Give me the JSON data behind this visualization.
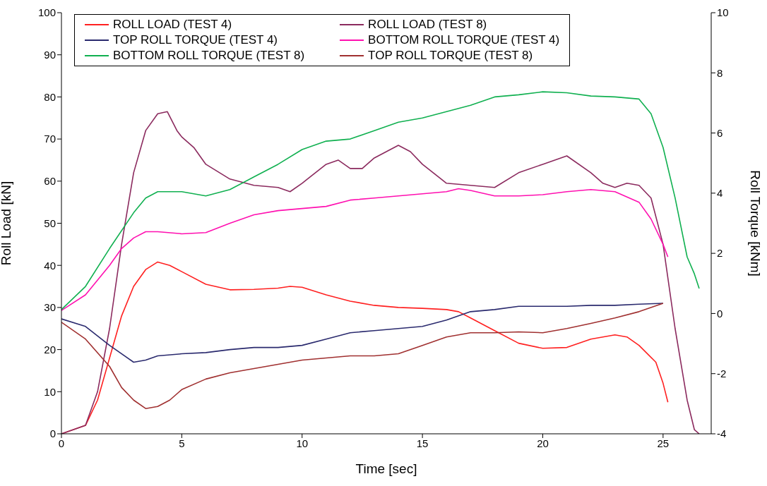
{
  "chart_data": {
    "type": "line",
    "xlabel": "Time [sec]",
    "ylabel": "Roll Load [kN]",
    "y2label": "Roll Torque [kNm]",
    "xlim": [
      0,
      27
    ],
    "xticks": [
      0,
      5,
      10,
      15,
      20,
      25
    ],
    "ylim": [
      0,
      100
    ],
    "yticks": [
      0,
      10,
      20,
      30,
      40,
      50,
      60,
      70,
      80,
      90,
      100
    ],
    "y2lim": [
      -4,
      10
    ],
    "y2ticks": [
      -4,
      -2,
      0,
      2,
      4,
      6,
      8,
      10
    ],
    "grid": false,
    "legend": "top left",
    "marker": "none",
    "line_style": "solid",
    "series": [
      {
        "name": "ROLL LOAD (TEST 4)",
        "color": "#ff2020",
        "x": [
          0,
          1,
          1.5,
          2,
          2.5,
          3,
          3.5,
          4,
          4.5,
          5,
          6,
          7,
          8,
          9,
          9.5,
          10,
          11,
          12,
          13,
          14,
          15,
          16,
          16.5,
          17,
          18,
          19,
          20,
          21,
          22,
          23,
          23.5,
          24,
          24.7,
          25,
          25.2
        ],
        "values": [
          0,
          2,
          8,
          18,
          28,
          35,
          39,
          40.8,
          40,
          38.5,
          35.5,
          34.2,
          34.3,
          34.6,
          35,
          34.8,
          33,
          31.5,
          30.5,
          30,
          29.8,
          29.5,
          29,
          27.5,
          24.5,
          21.5,
          20.3,
          20.5,
          22.5,
          23.5,
          23,
          21,
          17,
          12,
          7.5
        ]
      },
      {
        "name": "ROLL LOAD (TEST 8)",
        "color": "#8b2a5e",
        "x": [
          0,
          1,
          1.5,
          2,
          2.5,
          3,
          3.5,
          4,
          4.4,
          4.8,
          5,
          5.5,
          6,
          7,
          8,
          9,
          9.5,
          10,
          11,
          11.5,
          12,
          12.5,
          13,
          14,
          14.5,
          15,
          16,
          17,
          18,
          19,
          20,
          20.5,
          21,
          22,
          22.5,
          23,
          23.5,
          24,
          24.5,
          25,
          25.5,
          26,
          26.3,
          26.5
        ],
        "values": [
          0,
          2,
          10,
          25,
          45,
          62,
          72,
          76,
          76.5,
          72,
          70.5,
          68,
          64,
          60.5,
          59,
          58.5,
          57.5,
          59.5,
          64,
          65,
          63,
          63,
          65.5,
          68.5,
          67,
          64,
          59.5,
          59,
          58.5,
          62,
          64,
          65,
          66,
          62,
          59.5,
          58.5,
          59.5,
          59,
          56,
          45,
          25,
          8,
          1,
          0
        ]
      },
      {
        "name": "TOP ROLL TORQUE (TEST 4)",
        "color": "#2a2a6e",
        "axis": "y2",
        "x": [
          0,
          1,
          2,
          3,
          3.5,
          4,
          5,
          6,
          7,
          8,
          9,
          10,
          11,
          12,
          13,
          14,
          15,
          16,
          17,
          18,
          19,
          20,
          21,
          22,
          23,
          24,
          25
        ],
        "values": [
          -0.18,
          -0.43,
          -1.06,
          -1.62,
          -1.55,
          -1.41,
          -1.34,
          -1.3,
          -1.2,
          -1.13,
          -1.13,
          -1.06,
          -0.85,
          -0.64,
          -0.57,
          -0.5,
          -0.43,
          -0.22,
          0.06,
          0.13,
          0.24,
          0.24,
          0.24,
          0.27,
          0.27,
          0.31,
          0.34
        ]
      },
      {
        "name": "BOTTOM ROLL TORQUE (TEST 4)",
        "color": "#ff10b0",
        "axis": "y2",
        "x": [
          0,
          1,
          2,
          2.5,
          3,
          3.5,
          4,
          5,
          6,
          7,
          8,
          9,
          10,
          11,
          12,
          13,
          14,
          15,
          16,
          16.5,
          17,
          18,
          19,
          20,
          21,
          22,
          23,
          24,
          24.5,
          25,
          25.2
        ],
        "values": [
          0.1,
          0.62,
          1.6,
          2.16,
          2.51,
          2.72,
          2.72,
          2.65,
          2.69,
          3,
          3.28,
          3.42,
          3.49,
          3.56,
          3.77,
          3.84,
          3.91,
          3.98,
          4.05,
          4.15,
          4.09,
          3.91,
          3.91,
          3.95,
          4.05,
          4.12,
          4.05,
          3.7,
          3.14,
          2.3,
          1.88
        ]
      },
      {
        "name": "BOTTOM ROLL TORQUE (TEST 8)",
        "color": "#10b050",
        "axis": "y2",
        "x": [
          0,
          1,
          2,
          3,
          3.5,
          4,
          5,
          6,
          7,
          8,
          9,
          10,
          11,
          12,
          13,
          14,
          15,
          16,
          17,
          18,
          19,
          20,
          21,
          22,
          23,
          24,
          24.5,
          25,
          25.5,
          26,
          26.3,
          26.5
        ],
        "values": [
          0.13,
          0.9,
          2.16,
          3.35,
          3.84,
          4.05,
          4.05,
          3.91,
          4.12,
          4.54,
          4.96,
          5.45,
          5.73,
          5.8,
          6.08,
          6.36,
          6.5,
          6.71,
          6.92,
          7.2,
          7.27,
          7.37,
          7.34,
          7.23,
          7.2,
          7.13,
          6.64,
          5.52,
          3.84,
          1.88,
          1.32,
          0.83
        ]
      },
      {
        "name": "TOP ROLL TORQUE (TEST 8)",
        "color": "#a03030",
        "axis": "y2",
        "x": [
          0,
          1,
          2,
          2.5,
          3,
          3.5,
          4,
          4.5,
          5,
          6,
          7,
          8,
          9,
          10,
          11,
          12,
          13,
          14,
          15,
          16,
          17,
          18,
          19,
          20,
          21,
          22,
          23,
          24,
          25
        ],
        "values": [
          -0.29,
          -0.85,
          -1.76,
          -2.46,
          -2.88,
          -3.16,
          -3.09,
          -2.88,
          -2.53,
          -2.18,
          -1.97,
          -1.83,
          -1.69,
          -1.55,
          -1.48,
          -1.41,
          -1.41,
          -1.34,
          -1.06,
          -0.78,
          -0.64,
          -0.64,
          -0.61,
          -0.64,
          -0.5,
          -0.33,
          -0.15,
          0.06,
          0.34
        ]
      }
    ]
  }
}
